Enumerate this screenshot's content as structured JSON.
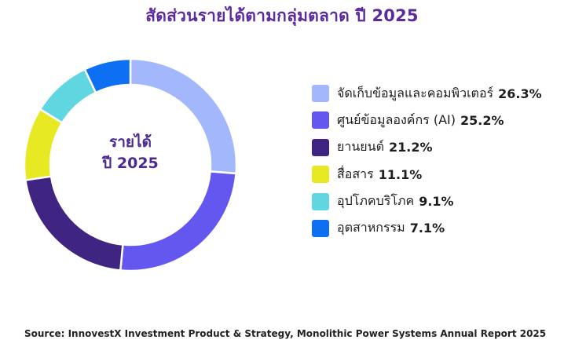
{
  "chart_data": {
    "type": "pie",
    "title": "สัดส่วนรายได้ตามกลุ่มตลาด ปี 2025",
    "center_label": [
      "รายได้",
      "ปี 2025"
    ],
    "legend_placement": "right",
    "slices": [
      {
        "label": "จัดเก็บข้อมูลและคอมพิวเตอร์",
        "value": 26.3,
        "value_label": "26.3%",
        "color": "#a3b8fc"
      },
      {
        "label": "ศูนย์ข้อมูลองค์กร (AI)",
        "value": 25.2,
        "value_label": "25.2%",
        "color": "#6457f0"
      },
      {
        "label": "ยานยนต์",
        "value": 21.2,
        "value_label": "21.2%",
        "color": "#3f2482"
      },
      {
        "label": "สื่อสาร",
        "value": 11.1,
        "value_label": "11.1%",
        "color": "#e7ea22"
      },
      {
        "label": "อุปโภคบริโภค",
        "value": 9.1,
        "value_label": "9.1%",
        "color": "#5fd6e0"
      },
      {
        "label": "อุตสาหกรรม",
        "value": 7.1,
        "value_label": "7.1%",
        "color": "#0d6ff2"
      }
    ]
  },
  "source": "Source: InnovestX Investment Product & Strategy, Monolithic Power Systems Annual Report 2025"
}
